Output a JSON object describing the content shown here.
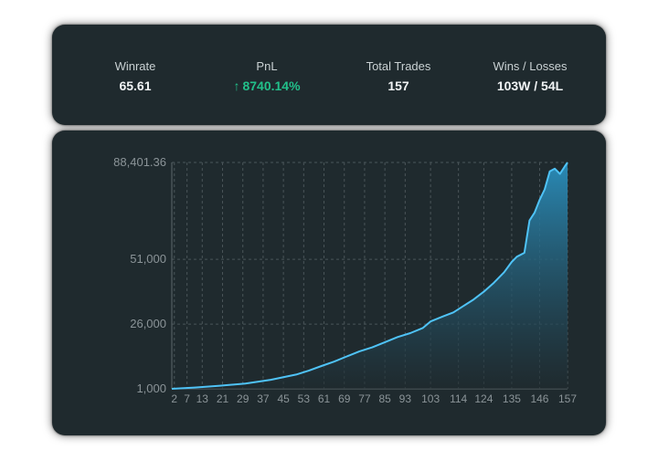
{
  "stats": {
    "winrate_label": "Winrate",
    "winrate_value": "65.61",
    "pnl_label": "PnL",
    "pnl_arrow": "↑",
    "pnl_value": "8740.14%",
    "trades_label": "Total Trades",
    "trades_value": "157",
    "winloss_label": "Wins / Losses",
    "winloss_value": "103W / 54L"
  },
  "colors": {
    "card_bg": "#1f2a2e",
    "pnl_positive": "#22c08a",
    "line": "#4fc3f7",
    "area_top": "#2a8fbd",
    "area_bottom": "#1f2a2e"
  },
  "chart_data": {
    "type": "area",
    "ylim": [
      1000,
      88401.36
    ],
    "yticks": [
      "1,000",
      "26,000",
      "51,000",
      "88,401.36"
    ],
    "ytick_values": [
      1000,
      26000,
      51000,
      88401.36
    ],
    "xlim": [
      1,
      157
    ],
    "xticks": [
      2,
      7,
      13,
      21,
      29,
      37,
      45,
      53,
      61,
      69,
      77,
      85,
      93,
      103,
      114,
      124,
      135,
      146,
      157
    ],
    "grid": true,
    "x": [
      1,
      10,
      20,
      30,
      40,
      50,
      55,
      60,
      65,
      70,
      75,
      80,
      85,
      90,
      95,
      100,
      103,
      108,
      112,
      116,
      120,
      124,
      128,
      132,
      135,
      137,
      140,
      142,
      144,
      146,
      148,
      150,
      152,
      154,
      156,
      157
    ],
    "y": [
      1000,
      1500,
      2200,
      3000,
      4500,
      6500,
      8000,
      9800,
      11500,
      13500,
      15500,
      17000,
      19000,
      21000,
      22500,
      24500,
      27000,
      29000,
      30500,
      33000,
      35500,
      38500,
      42000,
      46000,
      50000,
      52000,
      53500,
      66000,
      69000,
      74000,
      78000,
      85000,
      86000,
      84000,
      87000,
      88401.36
    ]
  }
}
